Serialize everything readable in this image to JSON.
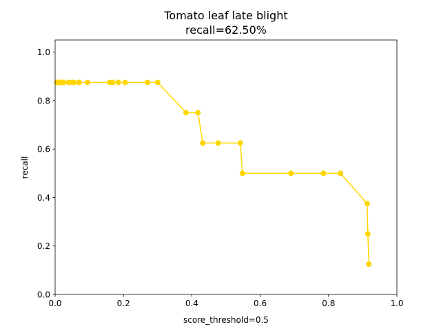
{
  "chart_data": {
    "type": "line",
    "title": "Tomato leaf late blight",
    "subtitle": "recall=62.50%",
    "xlabel": "score_threshold=0.5",
    "ylabel": "recall",
    "xlim": [
      0.0,
      1.0
    ],
    "ylim": [
      0.0,
      1.05
    ],
    "xticks": [
      "0.0",
      "0.2",
      "0.4",
      "0.6",
      "0.8",
      "1.0"
    ],
    "yticks": [
      "0.0",
      "0.2",
      "0.4",
      "0.6",
      "0.8",
      "1.0"
    ],
    "grid": false,
    "series": [
      {
        "color": "#ffd700",
        "marker": "circle",
        "x": [
          0.005,
          0.01,
          0.015,
          0.02,
          0.025,
          0.04,
          0.05,
          0.055,
          0.07,
          0.095,
          0.16,
          0.168,
          0.185,
          0.205,
          0.27,
          0.3,
          0.383,
          0.418,
          0.432,
          0.477,
          0.542,
          0.548,
          0.69,
          0.785,
          0.835,
          0.913,
          0.915,
          0.918
        ],
        "y": [
          0.875,
          0.875,
          0.875,
          0.875,
          0.875,
          0.875,
          0.875,
          0.875,
          0.875,
          0.875,
          0.875,
          0.875,
          0.875,
          0.875,
          0.875,
          0.875,
          0.75,
          0.75,
          0.625,
          0.625,
          0.625,
          0.5,
          0.5,
          0.5,
          0.5,
          0.375,
          0.25,
          0.125
        ]
      }
    ]
  }
}
